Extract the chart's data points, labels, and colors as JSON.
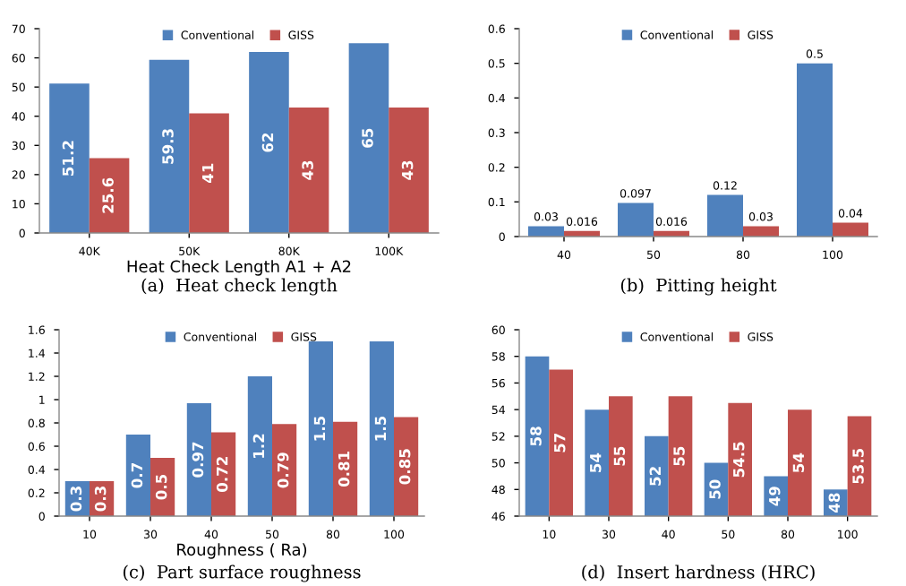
{
  "chart_data": [
    {
      "type": "bar",
      "categories": [
        "40K",
        "50K",
        "80K",
        "100K"
      ],
      "xlabel": "Heat Check Length A1 + A2",
      "ylim": [
        0,
        70
      ],
      "yticks": [
        0,
        10,
        20,
        30,
        40,
        50,
        60,
        70
      ],
      "legend": "top",
      "data_labels": true,
      "annotations": [
        "(a)  Heat check length"
      ],
      "series": [
        {
          "name": "Conventional",
          "color": "#4f81bd",
          "values": [
            51.2,
            59.3,
            62,
            65
          ]
        },
        {
          "name": "GISS",
          "color": "#c0504d",
          "values": [
            25.6,
            41,
            43,
            43
          ]
        }
      ]
    },
    {
      "type": "bar",
      "categories": [
        "40",
        "50",
        "80",
        "100"
      ],
      "ylim": [
        0,
        0.6
      ],
      "yticks": [
        0,
        0.1,
        0.2,
        0.3,
        0.4,
        0.5,
        0.6
      ],
      "legend": "top",
      "data_labels": true,
      "annotations": [
        "(b)  Pitting height"
      ],
      "series": [
        {
          "name": "Conventional",
          "color": "#4f81bd",
          "values": [
            0.03,
            0.097,
            0.12,
            0.5
          ]
        },
        {
          "name": "GISS",
          "color": "#c0504d",
          "values": [
            0.016,
            0.016,
            0.03,
            0.04
          ]
        }
      ]
    },
    {
      "type": "bar",
      "categories": [
        "10",
        "30",
        "40",
        "50",
        "80",
        "100"
      ],
      "xlabel": "Roughness ( Ra)",
      "ylim": [
        0,
        1.6
      ],
      "yticks": [
        0,
        0.2,
        0.4,
        0.6,
        0.8,
        1,
        1.2,
        1.4,
        1.6
      ],
      "legend": "top",
      "data_labels": true,
      "annotations": [
        "(c)  Part surface roughness"
      ],
      "series": [
        {
          "name": "Conventional",
          "color": "#4f81bd",
          "values": [
            0.3,
            0.7,
            0.97,
            1.2,
            1.5,
            1.5
          ]
        },
        {
          "name": "GISS",
          "color": "#c0504d",
          "values": [
            0.3,
            0.5,
            0.72,
            0.79,
            0.81,
            0.85
          ]
        }
      ]
    },
    {
      "type": "bar",
      "categories": [
        "10",
        "30",
        "40",
        "50",
        "80",
        "100"
      ],
      "ylim": [
        46,
        60
      ],
      "yticks": [
        46,
        48,
        50,
        52,
        54,
        56,
        58,
        60
      ],
      "legend": "top",
      "data_labels": true,
      "annotations": [
        "(d)  Insert hardness (HRC)"
      ],
      "series": [
        {
          "name": "Conventional",
          "color": "#4f81bd",
          "values": [
            58,
            54,
            52,
            50,
            49,
            48
          ]
        },
        {
          "name": "GISS",
          "color": "#c0504d",
          "values": [
            57,
            55,
            55,
            54.5,
            54,
            53.5
          ]
        }
      ]
    }
  ]
}
